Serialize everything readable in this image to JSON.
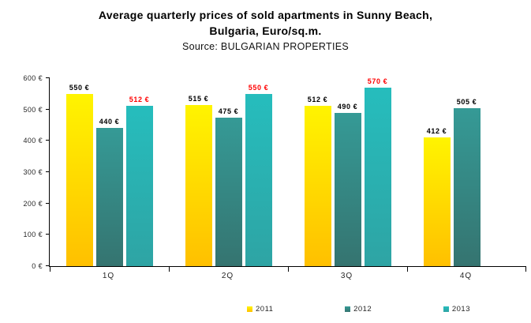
{
  "title": {
    "line1": "Average quarterly prices of sold apartments in Sunny Beach,",
    "line2": "Bulgaria, Euro/sq.m.",
    "source": "Source: BULGARIAN PROPERTIES"
  },
  "chart_data": {
    "type": "bar",
    "title": "Average quarterly prices of sold apartments in Sunny Beach, Bulgaria, Euro/sq.m.",
    "subtitle": "Source: BULGARIAN PROPERTIES",
    "categories": [
      "1Q",
      "2Q",
      "3Q",
      "4Q"
    ],
    "series": [
      {
        "name": "2011",
        "values": [
          550,
          515,
          512,
          412
        ],
        "color_top": "#FFF400",
        "color_bottom": "#FFC000",
        "label_color": "#000000"
      },
      {
        "name": "2012",
        "values": [
          440,
          475,
          490,
          505
        ],
        "color_top": "#359A96",
        "color_bottom": "#357470",
        "label_color": "#000000"
      },
      {
        "name": "2013",
        "values": [
          512,
          550,
          570,
          null
        ],
        "color_top": "#26BDBD",
        "color_bottom": "#2EA4A4",
        "label_color": "#FF0000"
      }
    ],
    "xlabel": "",
    "ylabel": "",
    "ylim": [
      0,
      600
    ],
    "ytick_step": 100,
    "ytick_suffix": " €",
    "value_suffix": " €",
    "grid": false,
    "legend_position": "bottom"
  }
}
